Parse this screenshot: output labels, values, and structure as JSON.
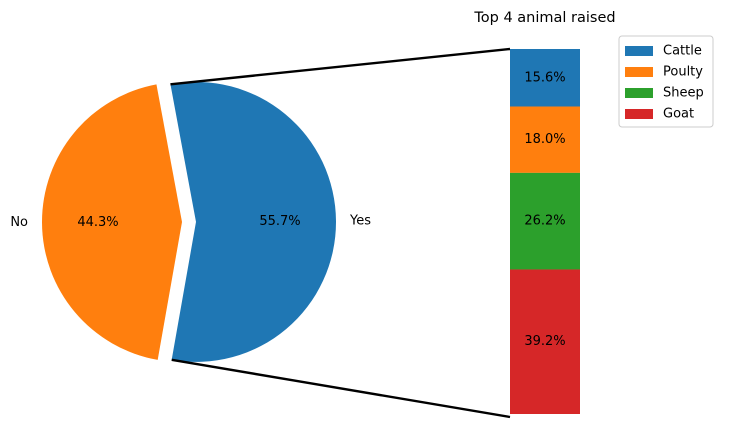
{
  "chart_data": [
    {
      "type": "pie",
      "title": "",
      "categories": [
        "Yes",
        "No"
      ],
      "values": [
        55.7,
        44.3
      ],
      "value_labels": [
        "55.7%",
        "44.3%"
      ],
      "colors": [
        "#1f77b4",
        "#ff7f0e"
      ],
      "explode": [
        0.1,
        0
      ],
      "start_angle_deg": -100,
      "direction": "counterclockwise",
      "connected_to": "bar"
    },
    {
      "type": "bar",
      "stacked": true,
      "title": "Top 4 animal raised",
      "categories": [
        "Cattle",
        "Poulty",
        "Sheep",
        "Goat"
      ],
      "values": [
        15.6,
        18.0,
        26.2,
        39.2
      ],
      "value_labels": [
        "15.6%",
        "18.0%",
        "26.2%",
        "39.2%"
      ],
      "colors": [
        "#1f77b4",
        "#ff7f0e",
        "#2ca02c",
        "#d62728"
      ],
      "axes_visible": false,
      "legend": "top-right"
    }
  ]
}
